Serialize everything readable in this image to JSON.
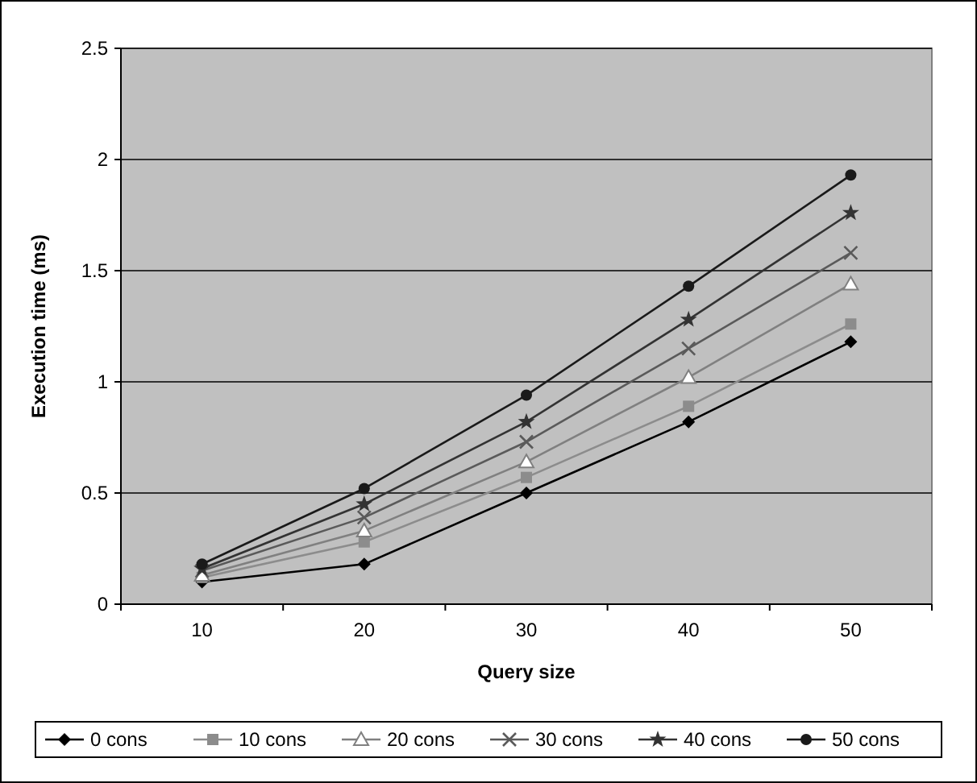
{
  "chart_data": {
    "type": "line",
    "xlabel": "Query size",
    "ylabel": "Execution time (ms)",
    "categories": [
      "10",
      "20",
      "30",
      "40",
      "50"
    ],
    "ylim": [
      0,
      2.5
    ],
    "yticks": [
      0,
      0.5,
      1,
      1.5,
      2,
      2.5
    ],
    "grid": "y",
    "legend": "bottom",
    "series": [
      {
        "name": "0 cons",
        "color": "#000000",
        "marker": "diamond",
        "values": [
          0.1,
          0.18,
          0.5,
          0.82,
          1.18
        ]
      },
      {
        "name": "10 cons",
        "color": "#8c8c8c",
        "marker": "square",
        "values": [
          0.12,
          0.28,
          0.57,
          0.89,
          1.26
        ]
      },
      {
        "name": "20 cons",
        "color": "#808080",
        "marker": "triangle",
        "values": [
          0.13,
          0.33,
          0.64,
          1.02,
          1.44
        ]
      },
      {
        "name": "30 cons",
        "color": "#5a5a5a",
        "marker": "cross",
        "values": [
          0.15,
          0.39,
          0.73,
          1.15,
          1.58
        ]
      },
      {
        "name": "40 cons",
        "color": "#333333",
        "marker": "star",
        "values": [
          0.16,
          0.45,
          0.82,
          1.28,
          1.76
        ]
      },
      {
        "name": "50 cons",
        "color": "#1a1a1a",
        "marker": "circle",
        "values": [
          0.18,
          0.52,
          0.94,
          1.43,
          1.93
        ]
      }
    ]
  }
}
